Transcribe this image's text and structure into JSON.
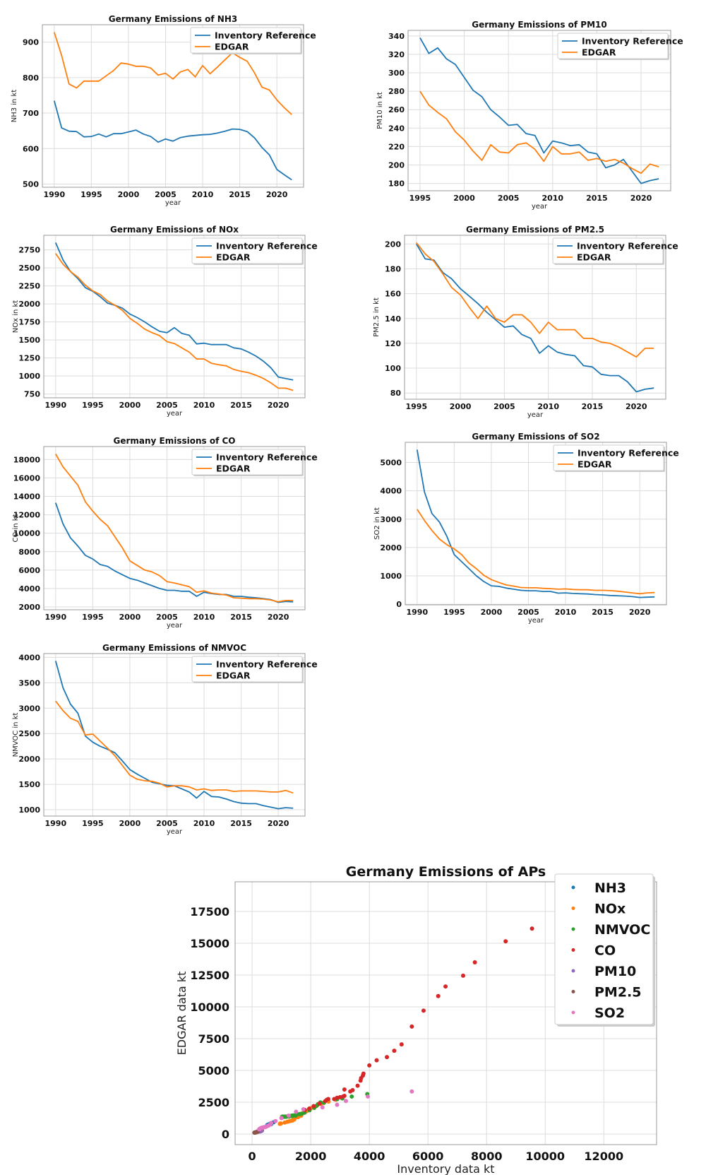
{
  "colors": {
    "inventory": "#1f77b4",
    "edgar": "#ff7f0e"
  },
  "legend_labels": [
    "Inventory Reference",
    "EDGAR"
  ],
  "chart_data": [
    {
      "type": "line",
      "id": "nh3",
      "title": "Germany Emissions of NH3",
      "xlabel": "year",
      "ylabel": "NH3 in kt",
      "xlim": [
        1988.4,
        2023.6
      ],
      "ylim": [
        491,
        949
      ],
      "xticks": [
        1990,
        1995,
        2000,
        2005,
        2010,
        2015,
        2020
      ],
      "yticks": [
        500,
        600,
        700,
        800,
        900
      ],
      "legend": "top-right",
      "grid": true,
      "x_start": 1990,
      "series": [
        {
          "name": "Inventory Reference",
          "values": [
            735,
            658,
            649,
            648,
            633,
            634,
            641,
            633,
            642,
            642,
            647,
            652,
            641,
            634,
            618,
            627,
            621,
            631,
            635,
            637,
            639,
            640,
            644,
            649,
            655,
            654,
            648,
            630,
            603,
            582,
            541,
            526,
            512
          ]
        },
        {
          "name": "EDGAR",
          "values": [
            928,
            862,
            782,
            771,
            790,
            790,
            790,
            805,
            820,
            841,
            838,
            832,
            832,
            827,
            807,
            812,
            796,
            816,
            823,
            802,
            834,
            811,
            830,
            850,
            870,
            857,
            846,
            813,
            773,
            765,
            737,
            715,
            696
          ]
        }
      ]
    },
    {
      "type": "line",
      "id": "pm10",
      "title": "Germany Emissions of PM10",
      "xlabel": "year",
      "ylabel": "PM10 in kt",
      "xlim": [
        1993.65,
        2023.35
      ],
      "ylim": [
        172,
        346
      ],
      "xticks": [
        1995,
        2000,
        2005,
        2010,
        2015,
        2020
      ],
      "yticks": [
        180,
        200,
        220,
        240,
        260,
        280,
        300,
        320,
        340
      ],
      "legend": "top-right",
      "grid": true,
      "x_start": 1995,
      "series": [
        {
          "name": "Inventory Reference",
          "values": [
            338,
            321,
            327,
            315,
            309,
            295,
            281,
            274,
            260,
            252,
            243,
            244,
            234,
            232,
            213,
            226,
            224,
            221,
            222,
            214,
            212,
            197,
            200,
            206,
            193,
            180,
            183,
            185
          ]
        },
        {
          "name": "EDGAR",
          "values": [
            280,
            265,
            257,
            250,
            236,
            227,
            215,
            205,
            222,
            214,
            213,
            222,
            224,
            217,
            204,
            220,
            212,
            212,
            214,
            205,
            207,
            204,
            206,
            202,
            196,
            191,
            201,
            198
          ]
        }
      ]
    },
    {
      "type": "line",
      "id": "nox",
      "title": "Germany Emissions of NOx",
      "xlabel": "year",
      "ylabel": "NOx in kt",
      "xlim": [
        1988.4,
        2023.6
      ],
      "ylim": [
        697,
        2952
      ],
      "xticks": [
        1990,
        1995,
        2000,
        2005,
        2010,
        2015,
        2020
      ],
      "yticks": [
        750,
        1000,
        1250,
        1500,
        1750,
        2000,
        2250,
        2500,
        2750
      ],
      "legend": "top-right",
      "grid": true,
      "x_start": 1990,
      "series": [
        {
          "name": "Inventory Reference",
          "values": [
            2850,
            2610,
            2450,
            2350,
            2225,
            2175,
            2100,
            2010,
            1980,
            1940,
            1860,
            1810,
            1750,
            1680,
            1620,
            1600,
            1670,
            1590,
            1565,
            1445,
            1455,
            1435,
            1435,
            1435,
            1390,
            1375,
            1330,
            1275,
            1205,
            1115,
            985,
            965,
            945
          ]
        },
        {
          "name": "EDGAR",
          "values": [
            2700,
            2550,
            2450,
            2370,
            2260,
            2180,
            2130,
            2040,
            1980,
            1910,
            1800,
            1730,
            1650,
            1600,
            1560,
            1475,
            1450,
            1390,
            1330,
            1235,
            1235,
            1175,
            1155,
            1140,
            1090,
            1065,
            1045,
            1010,
            965,
            905,
            830,
            830,
            800
          ]
        }
      ]
    },
    {
      "type": "line",
      "id": "pm25",
      "title": "Germany Emissions of PM2.5",
      "xlabel": "year",
      "ylabel": "PM2.5 in kt",
      "xlim": [
        1993.65,
        2023.35
      ],
      "ylim": [
        75,
        207
      ],
      "xticks": [
        1995,
        2000,
        2005,
        2010,
        2015,
        2020
      ],
      "yticks": [
        80,
        100,
        120,
        140,
        160,
        180,
        200
      ],
      "legend": "top-right",
      "grid": true,
      "x_start": 1995,
      "series": [
        {
          "name": "Inventory Reference",
          "values": [
            200,
            188,
            187,
            177,
            172,
            164,
            158,
            152,
            145,
            139,
            133,
            134,
            127,
            124,
            112,
            118,
            113,
            111,
            110,
            102,
            101,
            95,
            94,
            94,
            89,
            81,
            83,
            84
          ]
        },
        {
          "name": "EDGAR",
          "values": [
            201,
            192,
            186,
            176,
            165,
            159,
            149,
            140,
            150,
            140,
            137,
            143,
            143,
            137,
            128,
            137,
            131,
            131,
            131,
            124,
            124,
            121,
            120,
            117,
            113,
            109,
            116,
            116
          ]
        }
      ]
    },
    {
      "type": "line",
      "id": "co",
      "title": "Germany Emissions of CO",
      "xlabel": "year",
      "ylabel": "CO in kt",
      "xlim": [
        1988.4,
        2023.6
      ],
      "ylim": [
        1695,
        19405
      ],
      "xticks": [
        1990,
        1995,
        2000,
        2005,
        2010,
        2015,
        2020
      ],
      "yticks": [
        2000,
        4000,
        6000,
        8000,
        10000,
        12000,
        14000,
        16000,
        18000
      ],
      "legend": "top-right",
      "grid": true,
      "x_start": 1990,
      "series": [
        {
          "name": "Inventory Reference",
          "values": [
            13300,
            11000,
            9500,
            8600,
            7600,
            7200,
            6600,
            6400,
            5900,
            5500,
            5100,
            4900,
            4600,
            4300,
            4000,
            3800,
            3800,
            3700,
            3700,
            3150,
            3600,
            3450,
            3350,
            3350,
            3150,
            3150,
            3050,
            3000,
            2900,
            2800,
            2500,
            2600,
            2550
          ]
        },
        {
          "name": "EDGAR",
          "values": [
            18600,
            17200,
            16200,
            15200,
            13400,
            12400,
            11500,
            10800,
            9600,
            8400,
            7000,
            6500,
            6000,
            5800,
            5400,
            4750,
            4600,
            4400,
            4200,
            3600,
            3750,
            3500,
            3400,
            3300,
            3000,
            2950,
            2900,
            2900,
            2850,
            2750,
            2550,
            2700,
            2700
          ]
        }
      ]
    },
    {
      "type": "line",
      "id": "so2",
      "title": "Germany Emissions of SO2",
      "xlabel": "year",
      "ylabel": "SO2 in kt",
      "xlim": [
        1988.4,
        2023.6
      ],
      "ylim": [
        -20,
        5710
      ],
      "xticks": [
        1990,
        1995,
        2000,
        2005,
        2010,
        2015,
        2020
      ],
      "yticks": [
        0,
        1000,
        2000,
        3000,
        4000,
        5000
      ],
      "legend": "top-right",
      "grid": true,
      "x_start": 1990,
      "series": [
        {
          "name": "Inventory Reference",
          "values": [
            5450,
            3950,
            3200,
            2900,
            2400,
            1750,
            1500,
            1250,
            1000,
            800,
            650,
            630,
            570,
            530,
            490,
            475,
            475,
            450,
            450,
            390,
            400,
            380,
            370,
            360,
            340,
            330,
            310,
            300,
            290,
            270,
            240,
            250,
            260
          ]
        },
        {
          "name": "EDGAR",
          "values": [
            3350,
            2950,
            2600,
            2300,
            2100,
            1950,
            1750,
            1450,
            1250,
            1020,
            870,
            770,
            680,
            640,
            590,
            580,
            580,
            560,
            550,
            530,
            540,
            520,
            510,
            510,
            490,
            490,
            480,
            460,
            430,
            400,
            370,
            400,
            410
          ]
        }
      ]
    },
    {
      "type": "line",
      "id": "nmvoc",
      "title": "Germany Emissions of NMVOC",
      "xlabel": "year",
      "ylabel": "NMVOC in kt",
      "xlim": [
        1988.4,
        2023.6
      ],
      "ylim": [
        875,
        4075
      ],
      "xticks": [
        1990,
        1995,
        2000,
        2005,
        2010,
        2015,
        2020
      ],
      "yticks": [
        1000,
        1500,
        2000,
        2500,
        3000,
        3500,
        4000
      ],
      "legend": "top-right",
      "grid": true,
      "x_start": 1990,
      "series": [
        {
          "name": "Inventory Reference",
          "values": [
            3930,
            3400,
            3080,
            2900,
            2450,
            2330,
            2250,
            2190,
            2120,
            1960,
            1790,
            1700,
            1620,
            1540,
            1510,
            1480,
            1470,
            1410,
            1350,
            1230,
            1360,
            1260,
            1250,
            1210,
            1160,
            1130,
            1120,
            1120,
            1080,
            1050,
            1020,
            1040,
            1030
          ]
        },
        {
          "name": "EDGAR",
          "values": [
            3140,
            2950,
            2800,
            2740,
            2470,
            2490,
            2350,
            2210,
            2060,
            1870,
            1680,
            1600,
            1570,
            1560,
            1520,
            1450,
            1470,
            1470,
            1450,
            1390,
            1410,
            1380,
            1390,
            1390,
            1360,
            1370,
            1370,
            1370,
            1360,
            1350,
            1350,
            1380,
            1330
          ]
        }
      ]
    },
    {
      "type": "scatter",
      "id": "aps",
      "title": "Germany Emissions of APs",
      "xlabel": "Inventory data kt",
      "ylabel": "EDGAR data kt",
      "xlim": [
        -580,
        13800
      ],
      "ylim": [
        -830,
        19830
      ],
      "xticks": [
        0,
        2000,
        4000,
        6000,
        8000,
        10000,
        12000
      ],
      "yticks": [
        0,
        2500,
        5000,
        7500,
        10000,
        12500,
        15000,
        17500
      ],
      "legend": "top-right",
      "grid": true,
      "series": [
        {
          "name": "NH3",
          "color": "#1f77b4",
          "from": "nh3"
        },
        {
          "name": "NOx",
          "color": "#ff7f0e",
          "from": "nox"
        },
        {
          "name": "NMVOC",
          "color": "#2ca02c",
          "from": "nmvoc"
        },
        {
          "name": "CO",
          "color": "#d62728",
          "points": [
            [
              9550,
              16150
            ],
            [
              8650,
              15150
            ],
            [
              7600,
              13500
            ],
            [
              7200,
              12450
            ],
            [
              6600,
              11600
            ],
            [
              6350,
              10850
            ],
            [
              5850,
              9700
            ],
            [
              5450,
              8450
            ],
            [
              5100,
              7050
            ],
            [
              4850,
              6550
            ],
            [
              4600,
              6050
            ],
            [
              4250,
              5800
            ],
            [
              4000,
              5400
            ],
            [
              3800,
              4750
            ],
            [
              3780,
              4600
            ],
            [
              3720,
              4400
            ],
            [
              3700,
              4200
            ],
            [
              3600,
              3800
            ],
            [
              3430,
              3450
            ],
            [
              3350,
              3350
            ],
            [
              3150,
              3500
            ],
            [
              3150,
              3000
            ],
            [
              3100,
              2950
            ],
            [
              3000,
              2900
            ],
            [
              2900,
              2850
            ],
            [
              2800,
              2750
            ],
            [
              2600,
              2750
            ],
            [
              2550,
              2700
            ],
            [
              2500,
              2600
            ],
            [
              2300,
              2400
            ],
            [
              2100,
              2200
            ],
            [
              1950,
              2000
            ],
            [
              1800,
              1900
            ]
          ]
        },
        {
          "name": "PM10",
          "color": "#9467bd",
          "from": "pm10"
        },
        {
          "name": "PM2.5",
          "color": "#8c564b",
          "from": "pm25"
        },
        {
          "name": "SO2",
          "color": "#e377c2",
          "from": "so2"
        }
      ]
    }
  ]
}
